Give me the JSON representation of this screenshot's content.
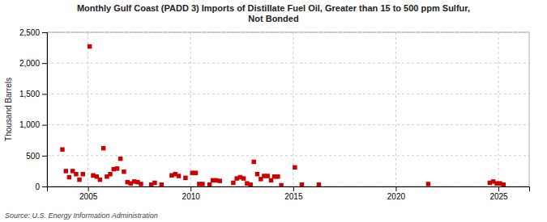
{
  "chart_data": {
    "type": "scatter",
    "title": "Monthly Gulf Coast (PADD 3) Imports of Distillate Fuel Oil, Greater than 15 to 500 ppm Sulfur,\nNot Bonded",
    "ylabel": "Thousand Barrels",
    "source": "Source: U.S. Energy Information Administration",
    "color": "#cc0000",
    "marker": "square",
    "grid": true,
    "xlim": [
      2003.0,
      2026.5
    ],
    "ylim": [
      0,
      2500
    ],
    "xticks": [
      2005,
      2010,
      2015,
      2020,
      2025
    ],
    "yticks": [
      0,
      500,
      {
        "value": 1000,
        "label": "1,000"
      },
      {
        "value": 1500,
        "label": "1,500"
      },
      {
        "value": 2000,
        "label": "2,000"
      },
      {
        "value": 2500,
        "label": "2,500"
      }
    ],
    "x": [
      2003.75,
      2003.92,
      2004.08,
      2004.25,
      2004.42,
      2004.58,
      2004.75,
      2005.08,
      2005.25,
      2005.42,
      2005.58,
      2005.75,
      2005.92,
      2006.08,
      2006.25,
      2006.42,
      2006.58,
      2006.75,
      2006.92,
      2007.08,
      2007.25,
      2007.42,
      2007.58,
      2008.08,
      2008.25,
      2008.58,
      2009.08,
      2009.25,
      2009.42,
      2009.75,
      2010.08,
      2010.25,
      2010.42,
      2010.58,
      2010.92,
      2011.08,
      2011.25,
      2011.42,
      2012.08,
      2012.25,
      2012.42,
      2012.58,
      2012.75,
      2012.92,
      2013.08,
      2013.25,
      2013.42,
      2013.58,
      2013.75,
      2013.92,
      2014.08,
      2014.25,
      2014.42,
      2015.08,
      2015.42,
      2016.25,
      2021.58,
      2024.58,
      2024.75,
      2024.92,
      2025.08,
      2025.25
    ],
    "values": [
      600,
      250,
      150,
      250,
      200,
      110,
      200,
      2270,
      180,
      160,
      110,
      620,
      160,
      200,
      280,
      290,
      450,
      240,
      70,
      50,
      80,
      70,
      40,
      30,
      60,
      30,
      180,
      200,
      170,
      140,
      220,
      220,
      40,
      40,
      30,
      100,
      100,
      90,
      60,
      130,
      150,
      130,
      50,
      30,
      400,
      200,
      120,
      170,
      170,
      100,
      160,
      160,
      20,
      310,
      30,
      30,
      40,
      60,
      80,
      50,
      50,
      30
    ]
  }
}
